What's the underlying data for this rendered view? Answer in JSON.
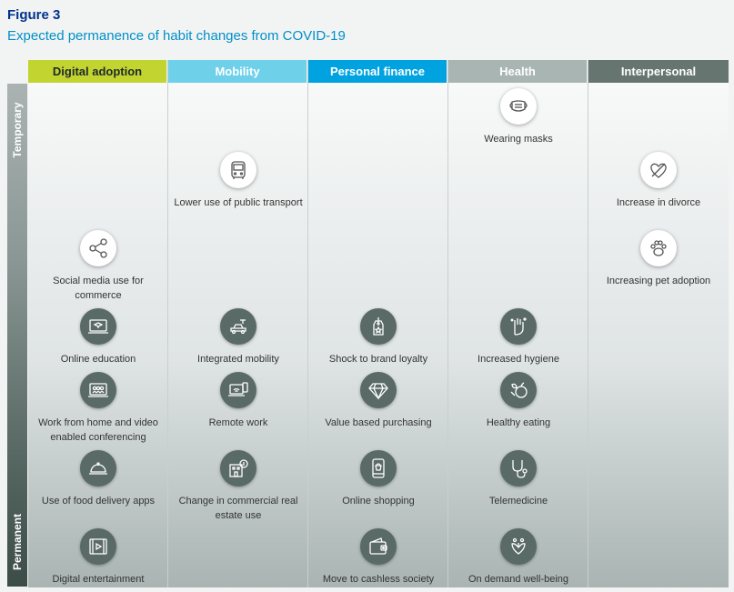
{
  "figure": {
    "label": "Figure 3",
    "title": "Expected permanence of habit changes from COVID-19"
  },
  "axis": {
    "top": "Temporary",
    "bottom": "Permanent"
  },
  "columns": [
    {
      "name": "Digital adoption",
      "header_bg": "#c2d430",
      "header_color": "#1f2a2a",
      "items": [
        {
          "label": "Social media use for commerce",
          "icon": "share-icon",
          "style": "light"
        },
        {
          "label": "Online education",
          "icon": "online-education-icon",
          "style": "dark"
        },
        {
          "label": "Work from home and video enabled conferencing",
          "icon": "video-conference-icon",
          "style": "dark"
        },
        {
          "label": "Use of food delivery apps",
          "icon": "food-delivery-icon",
          "style": "dark"
        },
        {
          "label": "Digital entertainment",
          "icon": "digital-entertainment-icon",
          "style": "dark"
        }
      ]
    },
    {
      "name": "Mobility",
      "header_bg": "#6fd0ea",
      "header_color": "#ffffff",
      "items": [
        {
          "label": "Lower use of public transport",
          "icon": "bus-icon",
          "style": "light"
        },
        {
          "label": "Integrated mobility",
          "icon": "integrated-mobility-icon",
          "style": "dark"
        },
        {
          "label": "Remote work",
          "icon": "remote-work-icon",
          "style": "dark"
        },
        {
          "label": "Change in commercial real estate use",
          "icon": "commercial-building-icon",
          "style": "dark"
        }
      ]
    },
    {
      "name": "Personal finance",
      "header_bg": "#00a3e0",
      "header_color": "#ffffff",
      "items": [
        {
          "label": "Shock to brand loyalty",
          "icon": "price-tag-icon",
          "style": "dark"
        },
        {
          "label": "Value based purchasing",
          "icon": "diamond-icon",
          "style": "dark"
        },
        {
          "label": "Online shopping",
          "icon": "online-shopping-icon",
          "style": "dark"
        },
        {
          "label": "Move to cashless society",
          "icon": "wallet-icon",
          "style": "dark"
        }
      ]
    },
    {
      "name": "Health",
      "header_bg": "#a9b5b2",
      "header_color": "#ffffff",
      "items": [
        {
          "label": "Wearing masks",
          "icon": "mask-icon",
          "style": "light"
        },
        {
          "label": "Increased hygiene",
          "icon": "hand-hygiene-icon",
          "style": "dark"
        },
        {
          "label": "Healthy eating",
          "icon": "healthy-food-icon",
          "style": "dark"
        },
        {
          "label": "Telemedicine",
          "icon": "stethoscope-icon",
          "style": "dark"
        },
        {
          "label": "On demand well-being",
          "icon": "wellbeing-icon",
          "style": "dark"
        }
      ]
    },
    {
      "name": "Interpersonal",
      "header_bg": "#66756f",
      "header_color": "#ffffff",
      "items": [
        {
          "label": "Increase in divorce",
          "icon": "broken-heart-icon",
          "style": "light"
        },
        {
          "label": "Increasing pet adoption",
          "icon": "paw-icon",
          "style": "light"
        }
      ]
    }
  ]
}
